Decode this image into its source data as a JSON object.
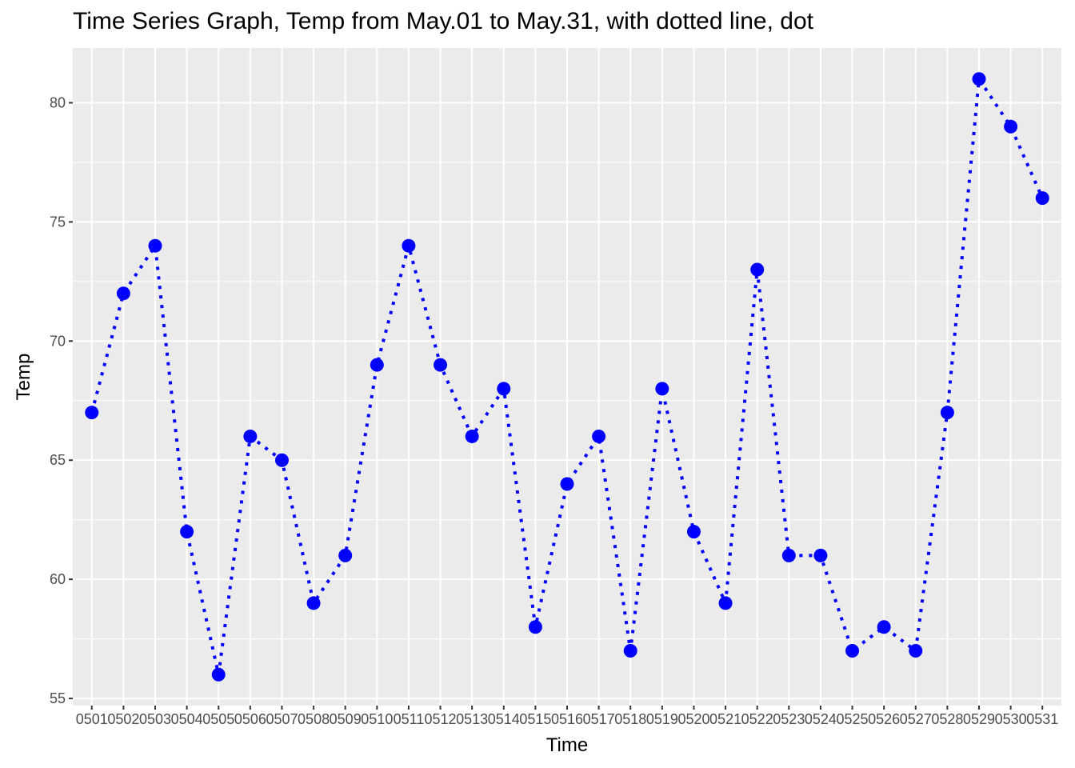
{
  "chart_data": {
    "type": "line",
    "title": "Time Series Graph, Temp from May.01 to May.31, with dotted line, dot",
    "xlabel": "Time",
    "ylabel": "Temp",
    "categories": [
      "0501",
      "0502",
      "0503",
      "0504",
      "0505",
      "0506",
      "0507",
      "0508",
      "0509",
      "0510",
      "0511",
      "0512",
      "0513",
      "0514",
      "0515",
      "0516",
      "0517",
      "0518",
      "0519",
      "0520",
      "0521",
      "0522",
      "0523",
      "0524",
      "0525",
      "0526",
      "0527",
      "0528",
      "0529",
      "0530",
      "0531"
    ],
    "values": [
      67,
      72,
      74,
      62,
      56,
      66,
      65,
      59,
      61,
      69,
      74,
      69,
      66,
      68,
      58,
      64,
      66,
      57,
      68,
      62,
      59,
      73,
      61,
      61,
      57,
      58,
      57,
      67,
      81,
      79,
      76
    ],
    "yticks": [
      55,
      60,
      65,
      70,
      75,
      80
    ],
    "ylim": [
      54.7,
      82.3
    ],
    "line_style": "dotted",
    "marker": "dot",
    "series_color": "#0000FF",
    "panel_color": "#EBEBEB",
    "grid_color": "#FFFFFF",
    "grid": true
  }
}
